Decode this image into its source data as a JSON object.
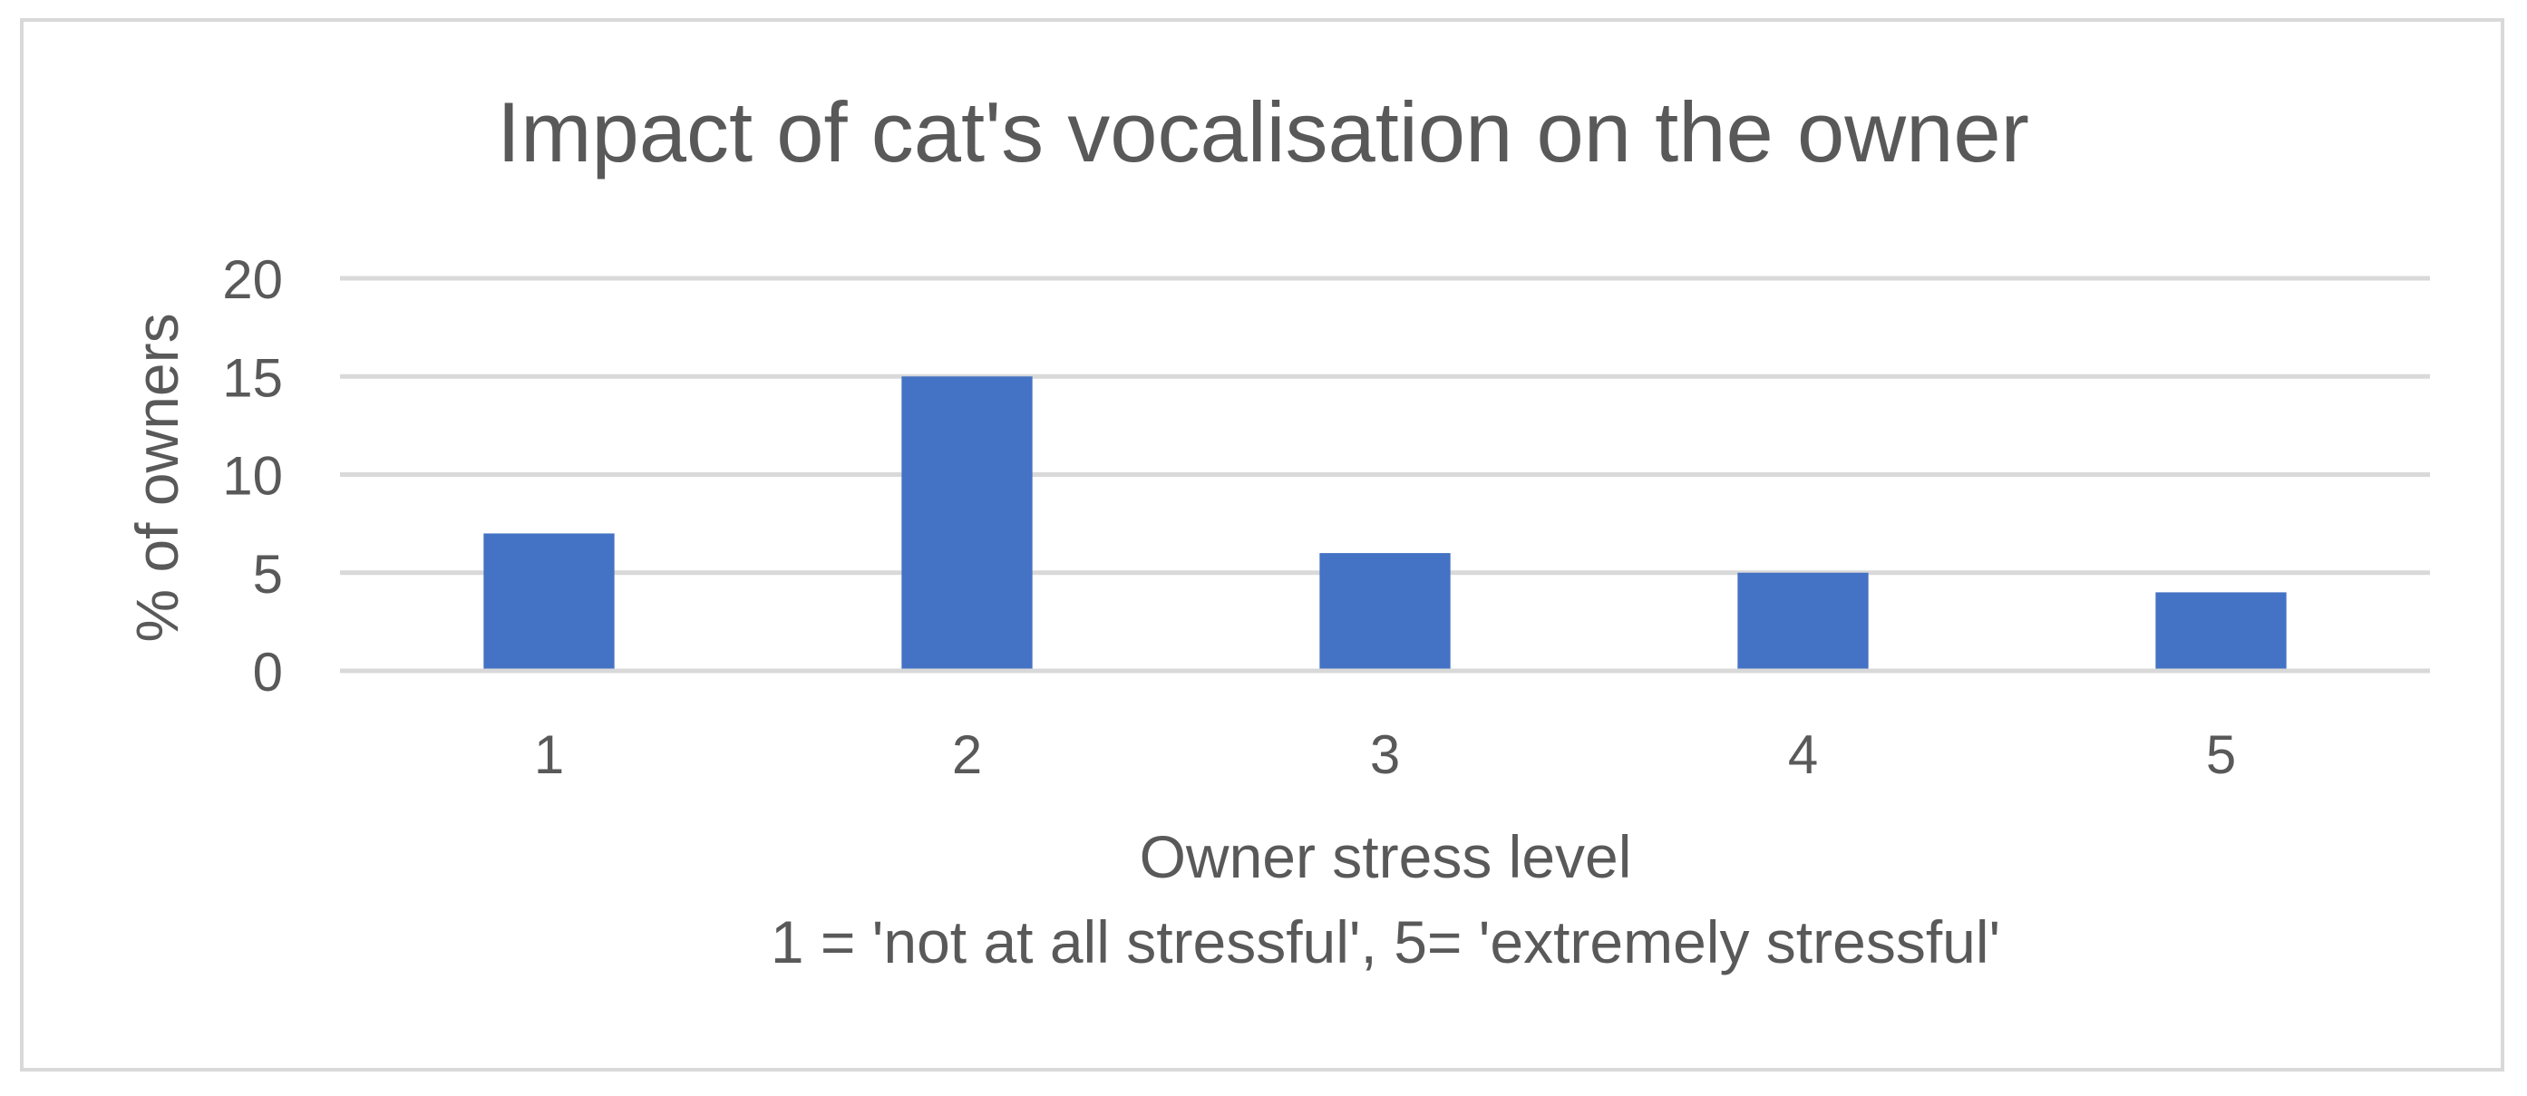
{
  "chart_data": {
    "type": "bar",
    "title": "Impact of cat's vocalisation on the owner",
    "xlabel": "Owner stress level",
    "xlabel_note": "1 = 'not at all stressful', 5= 'extremely stressful'",
    "ylabel": "% of owners",
    "categories": [
      "1",
      "2",
      "3",
      "4",
      "5"
    ],
    "values": [
      7,
      15,
      6,
      5,
      4
    ],
    "ylim": [
      0,
      20
    ],
    "yticks": [
      0,
      5,
      10,
      15,
      20
    ],
    "grid": true,
    "legend": "none",
    "bar_color": "#4472C4",
    "grid_color": "#D9D9D9",
    "text_color": "#595959"
  }
}
